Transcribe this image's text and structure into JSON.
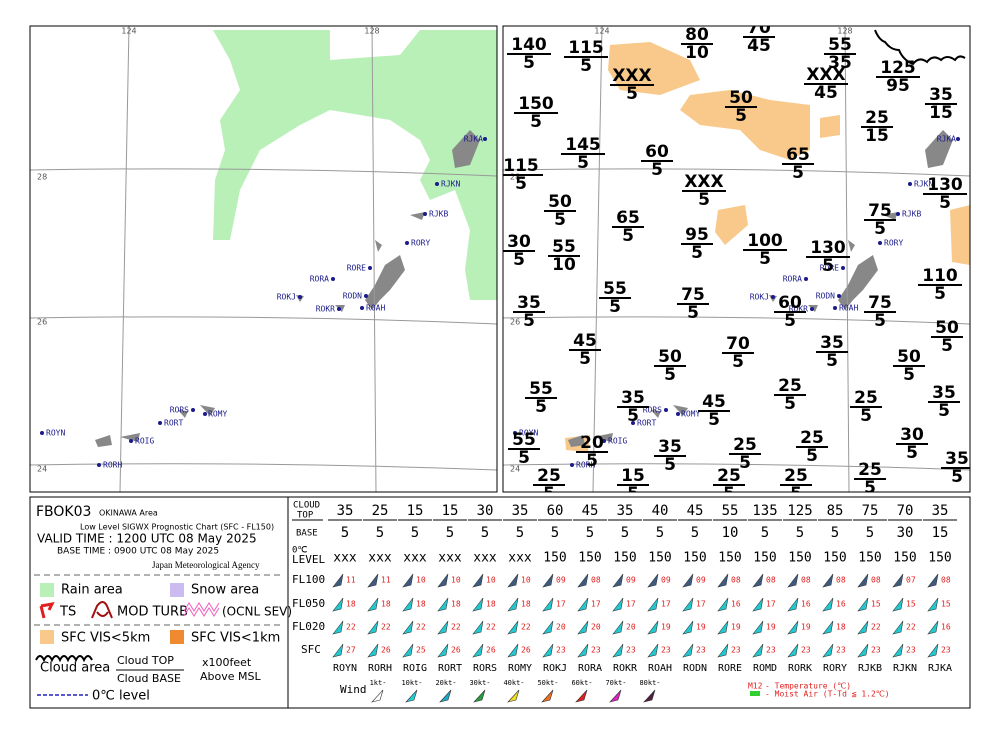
{
  "header": {
    "code": "FBOK03",
    "area": "OKINAWA Area",
    "chart": "Low Level SIGWX Prognostic Chart (SFC - FL150)",
    "valid": "VALID TIME : 1200 UTC 08 May 2025",
    "base": "BASE TIME : 0900 UTC 08 May 2025",
    "agency": "Japan Meteorological Agency"
  },
  "map": {
    "lon_labels": [
      "124",
      "128"
    ],
    "lat_labels": [
      "28",
      "26",
      "24"
    ],
    "stations": [
      "RJKA",
      "RJKN",
      "RJKB",
      "RORY",
      "RORE",
      "RORA",
      "ROKJ",
      "RODN",
      "ROKR",
      "ROAH",
      "RORS",
      "ROMY",
      "RORT",
      "ROYN",
      "ROIG",
      "RORH"
    ],
    "cloud_labels": [
      {
        "top": "140",
        "base": "5"
      },
      {
        "top": "115",
        "base": "5"
      },
      {
        "top": "80",
        "base": "10"
      },
      {
        "top": "70",
        "base": "45"
      },
      {
        "top": "55",
        "base": "35"
      },
      {
        "top": "125",
        "base": "95"
      },
      {
        "top": "XXX",
        "base": "5"
      },
      {
        "top": "XXX",
        "base": "45"
      },
      {
        "top": "35",
        "base": "15"
      },
      {
        "top": "150",
        "base": "5"
      },
      {
        "top": "50",
        "base": "5"
      },
      {
        "top": "25",
        "base": "15"
      },
      {
        "top": "145",
        "base": "5"
      },
      {
        "top": "60",
        "base": "5"
      },
      {
        "top": "65",
        "base": "5"
      },
      {
        "top": "115",
        "base": "5"
      },
      {
        "top": "XXX",
        "base": "5"
      },
      {
        "top": "130",
        "base": "5"
      },
      {
        "top": "50",
        "base": "5"
      },
      {
        "top": "65",
        "base": "5"
      },
      {
        "top": "75",
        "base": "5"
      },
      {
        "top": "95",
        "base": "5"
      },
      {
        "top": "100",
        "base": "5"
      },
      {
        "top": "130",
        "base": "5"
      },
      {
        "top": "30",
        "base": "5"
      },
      {
        "top": "55",
        "base": "10"
      },
      {
        "top": "110",
        "base": "5"
      },
      {
        "top": "35",
        "base": "5"
      },
      {
        "top": "55",
        "base": "5"
      },
      {
        "top": "75",
        "base": "5"
      },
      {
        "top": "60",
        "base": "5"
      },
      {
        "top": "75",
        "base": "5"
      },
      {
        "top": "50",
        "base": "5"
      },
      {
        "top": "45",
        "base": "5"
      },
      {
        "top": "70",
        "base": "5"
      },
      {
        "top": "35",
        "base": "5"
      },
      {
        "top": "50",
        "base": "5"
      },
      {
        "top": "50",
        "base": "5"
      },
      {
        "top": "55",
        "base": "5"
      },
      {
        "top": "25",
        "base": "5"
      },
      {
        "top": "35",
        "base": "5"
      },
      {
        "top": "45",
        "base": "5"
      },
      {
        "top": "25",
        "base": "5"
      },
      {
        "top": "35",
        "base": "5"
      },
      {
        "top": "55",
        "base": "5"
      },
      {
        "top": "20",
        "base": "5"
      },
      {
        "top": "35",
        "base": "5"
      },
      {
        "top": "25",
        "base": "5"
      },
      {
        "top": "25",
        "base": "5"
      },
      {
        "top": "30",
        "base": "5"
      },
      {
        "top": "35",
        "base": "5"
      },
      {
        "top": "25",
        "base": "5"
      },
      {
        "top": "15",
        "base": "5"
      },
      {
        "top": "25",
        "base": "5"
      },
      {
        "top": "25",
        "base": "5"
      },
      {
        "top": "25",
        "base": "5"
      }
    ]
  },
  "legend": {
    "rain": "Rain area",
    "snow": "Snow area",
    "ts": "TS",
    "turb": "MOD TURB",
    "sev": "(OCNL SEV)",
    "vis5": "SFC VIS<5km",
    "vis1": "SFC VIS<1km",
    "cloud": "Cloud area",
    "cloud_top": "Cloud TOP",
    "cloud_base": "Cloud BASE",
    "unit": "x100feet",
    "msl": "Above MSL",
    "freezing": "0℃ level"
  },
  "table": {
    "row_headers": {
      "cloud": "CLOUD",
      "top": "TOP",
      "base": "BASE",
      "zero": "0℃",
      "level": "LEVEL",
      "fl100": "FL100",
      "fl050": "FL050",
      "fl020": "FL020",
      "sfc": "SFC"
    },
    "stations": [
      "ROYN",
      "RORH",
      "ROIG",
      "RORT",
      "RORS",
      "ROMY",
      "ROKJ",
      "RORA",
      "ROKR",
      "ROAH",
      "RODN",
      "RORE",
      "ROMD",
      "RORK",
      "RORY",
      "RJKB",
      "RJKN",
      "RJKA"
    ],
    "cloud_top": [
      "35",
      "25",
      "15",
      "15",
      "30",
      "35",
      "60",
      "45",
      "35",
      "40",
      "45",
      "55",
      "135",
      "125",
      "85",
      "75",
      "70",
      "35"
    ],
    "base": [
      "5",
      "5",
      "5",
      "5",
      "5",
      "5",
      "5",
      "5",
      "5",
      "5",
      "5",
      "10",
      "5",
      "5",
      "5",
      "5",
      "30",
      "15"
    ],
    "level": [
      "xxx",
      "xxx",
      "xxx",
      "xxx",
      "xxx",
      "xxx",
      "150",
      "150",
      "150",
      "150",
      "150",
      "150",
      "150",
      "150",
      "150",
      "150",
      "150",
      "150"
    ],
    "fl100": [
      "11",
      "11",
      "10",
      "10",
      "10",
      "10",
      "09",
      "08",
      "09",
      "09",
      "09",
      "08",
      "08",
      "08",
      "08",
      "08",
      "07",
      "08"
    ],
    "fl050": [
      "18",
      "18",
      "18",
      "18",
      "18",
      "18",
      "17",
      "17",
      "17",
      "17",
      "17",
      "16",
      "17",
      "16",
      "16",
      "15",
      "15",
      "15"
    ],
    "fl020": [
      "22",
      "22",
      "22",
      "22",
      "22",
      "22",
      "20",
      "20",
      "20",
      "19",
      "19",
      "19",
      "19",
      "19",
      "18",
      "22",
      "22",
      "16"
    ],
    "sfc": [
      "27",
      "26",
      "25",
      "26",
      "26",
      "26",
      "23",
      "23",
      "23",
      "23",
      "23",
      "23",
      "23",
      "23",
      "23",
      "23",
      "23",
      "23"
    ]
  },
  "wind_legend": {
    "title": "Wind",
    "speeds": [
      "1kt-",
      "10kt-",
      "20kt-",
      "30kt-",
      "40kt-",
      "50kt-",
      "60kt-",
      "70kt-",
      "80kt-"
    ],
    "colors": [
      "#ffffff",
      "#22d0d8",
      "#1aa8c8",
      "#20a040",
      "#f0e020",
      "#f07020",
      "#e02020",
      "#e020c0",
      "#502040"
    ]
  },
  "temp_legend": {
    "sample": "M12",
    "temp": "- Temperature (℃)",
    "moist": "- Moist Air (T-Td ≦ 1.2℃)"
  }
}
